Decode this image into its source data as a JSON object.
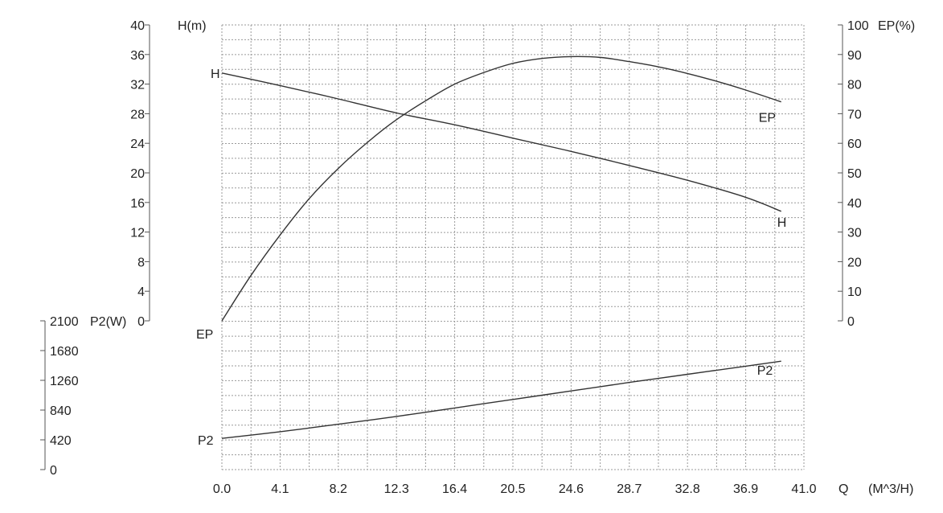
{
  "chart_data": {
    "type": "line",
    "x_axis": {
      "label": "Q",
      "unit": "(M^3/H)",
      "ticks": [
        "0.0",
        "4.1",
        "8.2",
        "12.3",
        "16.4",
        "20.5",
        "24.6",
        "28.7",
        "32.8",
        "36.9",
        "41.0"
      ],
      "range": [
        0,
        41
      ]
    },
    "head_axis": {
      "title": "H(m)",
      "ticks": [
        "0",
        "4",
        "8",
        "12",
        "16",
        "20",
        "24",
        "28",
        "32",
        "36",
        "40"
      ],
      "range": [
        0,
        40
      ]
    },
    "efficiency_axis": {
      "title": "EP(%)",
      "ticks": [
        "0",
        "10",
        "20",
        "30",
        "40",
        "50",
        "60",
        "70",
        "80",
        "90",
        "100"
      ],
      "range": [
        0,
        100
      ]
    },
    "power_axis": {
      "title": "P2(W)",
      "ticks": [
        "0",
        "420",
        "840",
        "1260",
        "1680",
        "2100"
      ],
      "range": [
        0,
        2100
      ]
    },
    "grid": true,
    "series": [
      {
        "name": "H",
        "axis": "head_axis",
        "start_label": "H",
        "end_label": "H",
        "points": [
          [
            0,
            33.5
          ],
          [
            4.1,
            31.8
          ],
          [
            8.2,
            30
          ],
          [
            12.3,
            28.1
          ],
          [
            16.4,
            26.5
          ],
          [
            20.5,
            24.7
          ],
          [
            24.6,
            22.9
          ],
          [
            28.7,
            21
          ],
          [
            32.8,
            19
          ],
          [
            36.9,
            16.7
          ],
          [
            39.4,
            14.8
          ]
        ]
      },
      {
        "name": "EP",
        "axis": "efficiency_axis",
        "start_label": "EP",
        "end_label": "EP",
        "points": [
          [
            0,
            0
          ],
          [
            2,
            15
          ],
          [
            4.1,
            29
          ],
          [
            6.1,
            41
          ],
          [
            8.2,
            51.5
          ],
          [
            10.3,
            60.5
          ],
          [
            12.3,
            68
          ],
          [
            14.4,
            74.5
          ],
          [
            16.4,
            80
          ],
          [
            18.5,
            84
          ],
          [
            20.5,
            87
          ],
          [
            22.6,
            88.7
          ],
          [
            24.6,
            89.3
          ],
          [
            26.7,
            89
          ],
          [
            28.7,
            87.6
          ],
          [
            30.8,
            85.8
          ],
          [
            32.8,
            83.6
          ],
          [
            34.9,
            80.9
          ],
          [
            36.9,
            78
          ],
          [
            39.4,
            74
          ]
        ]
      },
      {
        "name": "P2",
        "axis": "power_axis",
        "start_label": "P2",
        "end_label": "P2",
        "points": [
          [
            0,
            440
          ],
          [
            4.1,
            535
          ],
          [
            8.2,
            640
          ],
          [
            12.3,
            750
          ],
          [
            16.4,
            870
          ],
          [
            20.5,
            990
          ],
          [
            24.6,
            1110
          ],
          [
            28.7,
            1230
          ],
          [
            32.8,
            1345
          ],
          [
            36.9,
            1460
          ],
          [
            39.4,
            1530
          ]
        ]
      }
    ]
  }
}
